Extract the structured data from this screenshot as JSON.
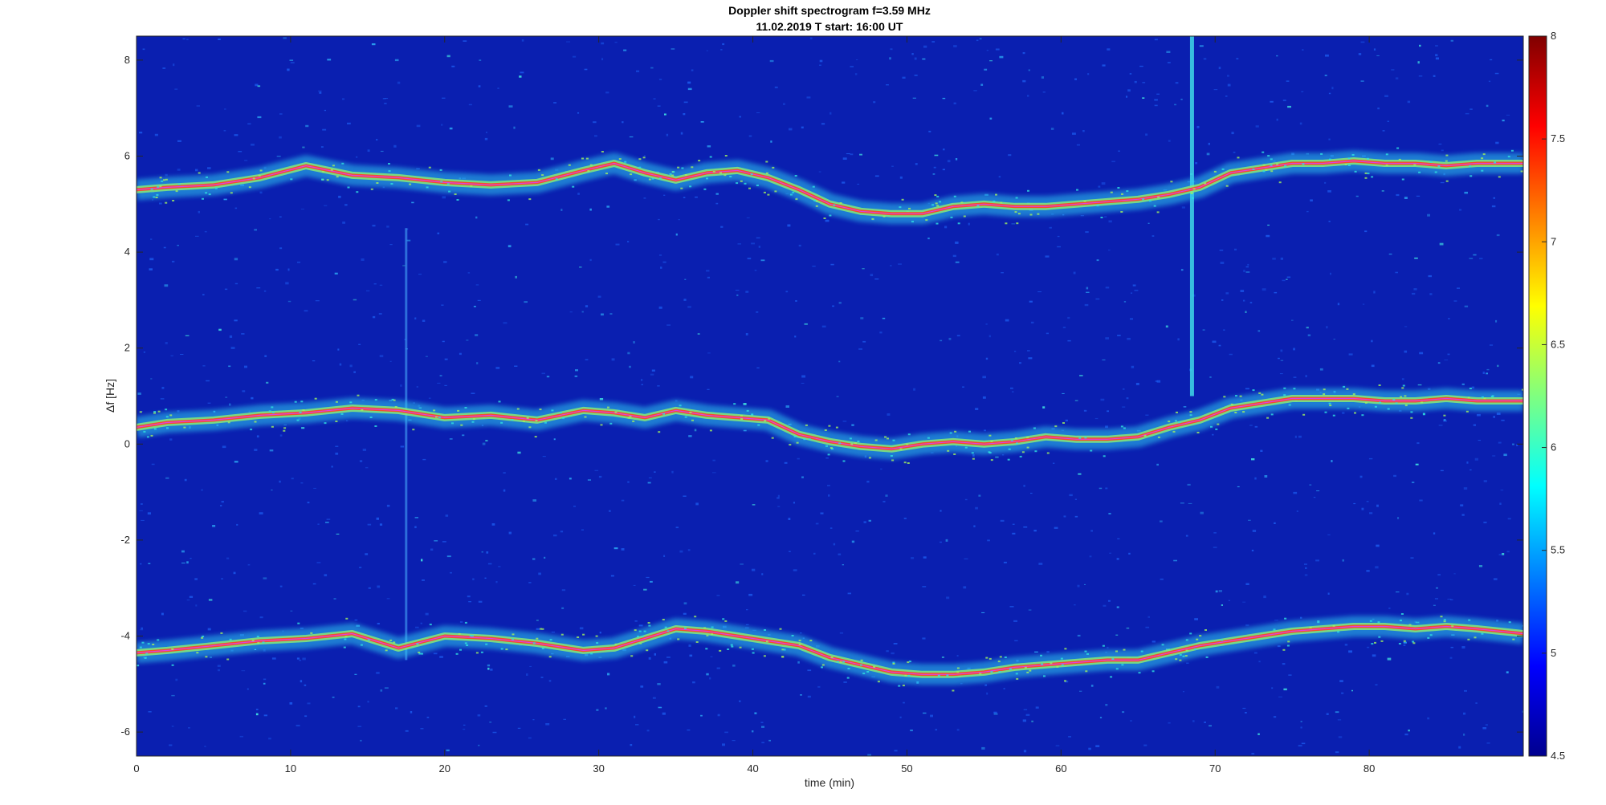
{
  "chart_data": {
    "type": "heatmap",
    "title": "Doppler shift spectrogram f=3.59 MHz",
    "subtitle": "11.02.2019   T start: 16:00 UT",
    "xlabel": "time (min)",
    "ylabel": "Δf [Hz]",
    "xlim": [
      0,
      90
    ],
    "ylim": [
      -6.5,
      8.5
    ],
    "xticks": [
      "0",
      "10",
      "20",
      "30",
      "40",
      "50",
      "60",
      "70",
      "80"
    ],
    "yticks": [
      "-6",
      "-4",
      "-2",
      "0",
      "2",
      "4",
      "6",
      "8"
    ],
    "colorbar": {
      "range": [
        4.5,
        8
      ],
      "ticks": [
        "4.5",
        "5",
        "5.5",
        "6",
        "6.5",
        "7",
        "7.5",
        "8"
      ],
      "colormap": "jet"
    },
    "background_color": "#0a1fb0",
    "trace_color": "#e040e0",
    "bands": [
      {
        "x": [
          0,
          2,
          5,
          8,
          11,
          14,
          17,
          20,
          23,
          26,
          29,
          31,
          33,
          35,
          37,
          39,
          41,
          43,
          45,
          47,
          49,
          51,
          53,
          55,
          57,
          59,
          61,
          63,
          65,
          67,
          69,
          71,
          73,
          75,
          77,
          79,
          81,
          83,
          85,
          87,
          90
        ],
        "y": [
          5.3,
          5.35,
          5.4,
          5.55,
          5.8,
          5.6,
          5.55,
          5.45,
          5.4,
          5.45,
          5.7,
          5.85,
          5.65,
          5.5,
          5.65,
          5.7,
          5.55,
          5.3,
          5.0,
          4.85,
          4.8,
          4.8,
          4.95,
          5.0,
          4.95,
          4.95,
          5.0,
          5.05,
          5.1,
          5.2,
          5.35,
          5.65,
          5.75,
          5.85,
          5.85,
          5.9,
          5.85,
          5.85,
          5.8,
          5.85,
          5.85
        ]
      },
      {
        "x": [
          0,
          2,
          5,
          8,
          11,
          14,
          17,
          20,
          23,
          26,
          29,
          31,
          33,
          35,
          37,
          39,
          41,
          43,
          45,
          47,
          49,
          51,
          53,
          55,
          57,
          59,
          61,
          63,
          65,
          67,
          69,
          71,
          73,
          75,
          77,
          79,
          81,
          83,
          85,
          87,
          90
        ],
        "y": [
          0.35,
          0.45,
          0.5,
          0.6,
          0.65,
          0.75,
          0.7,
          0.55,
          0.6,
          0.5,
          0.7,
          0.65,
          0.55,
          0.7,
          0.6,
          0.55,
          0.5,
          0.2,
          0.05,
          -0.05,
          -0.1,
          0.0,
          0.05,
          0.0,
          0.05,
          0.15,
          0.1,
          0.1,
          0.15,
          0.35,
          0.5,
          0.75,
          0.85,
          0.95,
          0.95,
          0.95,
          0.9,
          0.9,
          0.95,
          0.9,
          0.9
        ]
      },
      {
        "x": [
          0,
          2,
          5,
          8,
          11,
          14,
          17,
          20,
          23,
          26,
          29,
          31,
          33,
          35,
          37,
          39,
          41,
          43,
          45,
          47,
          49,
          51,
          53,
          55,
          57,
          59,
          61,
          63,
          65,
          67,
          69,
          71,
          73,
          75,
          77,
          79,
          81,
          83,
          85,
          87,
          90
        ],
        "y": [
          -4.35,
          -4.3,
          -4.2,
          -4.1,
          -4.05,
          -3.95,
          -4.25,
          -4.0,
          -4.05,
          -4.15,
          -4.3,
          -4.25,
          -4.05,
          -3.85,
          -3.9,
          -4.0,
          -4.1,
          -4.2,
          -4.45,
          -4.6,
          -4.75,
          -4.8,
          -4.8,
          -4.75,
          -4.65,
          -4.6,
          -4.55,
          -4.5,
          -4.5,
          -4.35,
          -4.2,
          -4.1,
          -4.0,
          -3.9,
          -3.85,
          -3.8,
          -3.8,
          -3.85,
          -3.8,
          -3.85,
          -3.95
        ]
      }
    ],
    "spike": {
      "x": 68.5,
      "y_min": 1.0,
      "y_max": 8.5
    },
    "vertical_streak": {
      "x": 17.5,
      "y_min": -4.5,
      "y_max": 4.5
    }
  }
}
